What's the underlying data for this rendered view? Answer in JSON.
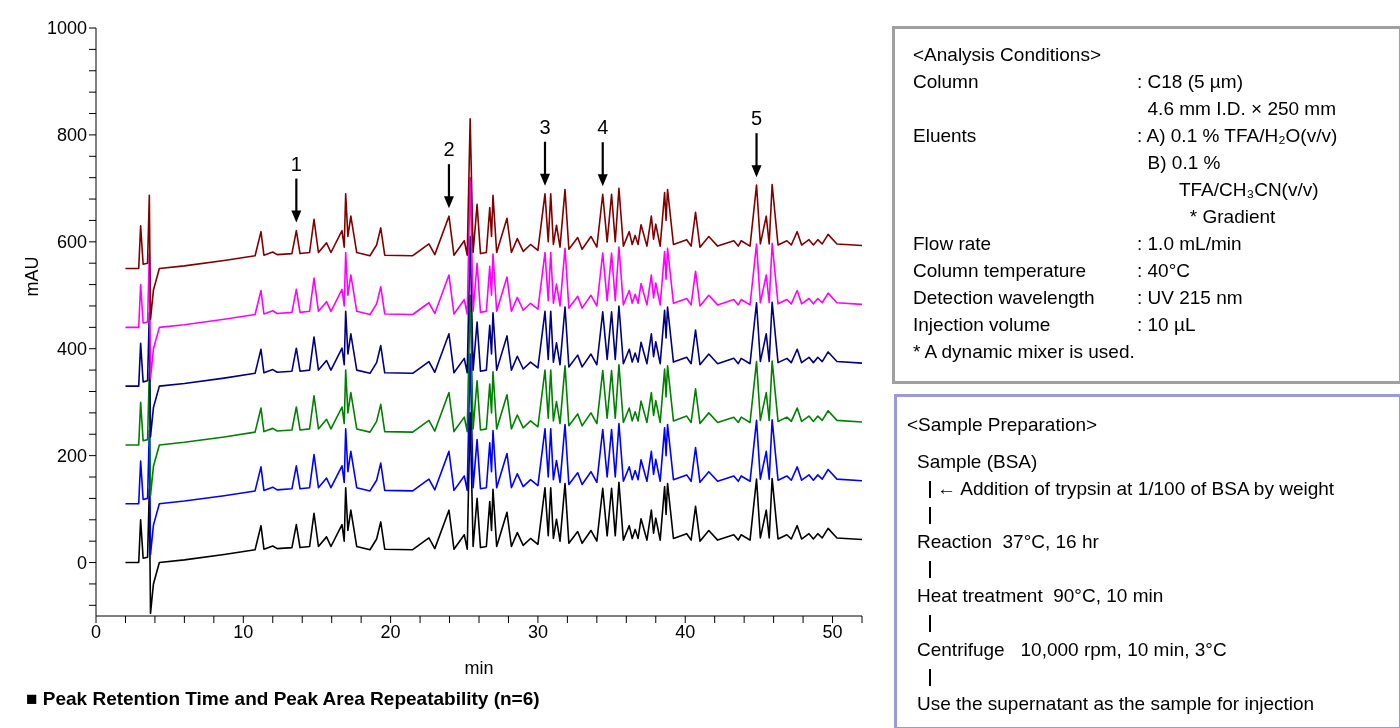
{
  "chart_data": [
    {
      "type": "line",
      "xlabel": "min",
      "ylabel": "mAU",
      "xlim": [
        0,
        52
      ],
      "ylim": [
        -100,
        1000
      ],
      "xticks": [
        0,
        {
          "value": 2,
          "label": null
        },
        {
          "value": 4,
          "label": null
        },
        {
          "value": 6,
          "label": null
        },
        {
          "value": 8,
          "label": null
        },
        10,
        {
          "value": 12,
          "label": null
        },
        {
          "value": 14,
          "label": null
        },
        {
          "value": 16,
          "label": null
        },
        {
          "value": 18,
          "label": null
        },
        20,
        {
          "value": 22,
          "label": null
        },
        {
          "value": 24,
          "label": null
        },
        {
          "value": 26,
          "label": null
        },
        {
          "value": 28,
          "label": null
        },
        30,
        {
          "value": 32,
          "label": null
        },
        {
          "value": 34,
          "label": null
        },
        {
          "value": 36,
          "label": null
        },
        {
          "value": 38,
          "label": null
        },
        40,
        {
          "value": 42,
          "label": null
        },
        {
          "value": 44,
          "label": null
        },
        {
          "value": 46,
          "label": null
        },
        {
          "value": 48,
          "label": null
        },
        50,
        {
          "value": 52,
          "label": null
        }
      ],
      "yticks": [
        {
          "value": -80,
          "label": null
        },
        {
          "value": -40,
          "label": null
        },
        0,
        {
          "value": 40,
          "label": null
        },
        {
          "value": 80,
          "label": null
        },
        {
          "value": 120,
          "label": null
        },
        {
          "value": 160,
          "label": null
        },
        200,
        {
          "value": 240,
          "label": null
        },
        {
          "value": 280,
          "label": null
        },
        {
          "value": 320,
          "label": null
        },
        {
          "value": 360,
          "label": null
        },
        400,
        {
          "value": 440,
          "label": null
        },
        {
          "value": 480,
          "label": null
        },
        {
          "value": 520,
          "label": null
        },
        {
          "value": 560,
          "label": null
        },
        600,
        {
          "value": 640,
          "label": null
        },
        {
          "value": 680,
          "label": null
        },
        {
          "value": 720,
          "label": null
        },
        {
          "value": 760,
          "label": null
        },
        800,
        {
          "value": 840,
          "label": null
        },
        {
          "value": 880,
          "label": null
        },
        {
          "value": 920,
          "label": null
        },
        {
          "value": 960,
          "label": null
        },
        1000
      ],
      "x": [
        2.0,
        2.9,
        3.03,
        3.2,
        3.5,
        3.62,
        3.7,
        3.9,
        4.3,
        6.0,
        8.7,
        10.8,
        11.2,
        11.4,
        12.0,
        12.3,
        13.3,
        13.6,
        13.85,
        14.5,
        14.8,
        15.1,
        15.65,
        15.95,
        16.7,
        16.85,
        16.95,
        17.1,
        17.3,
        17.7,
        18.6,
        19.05,
        19.33,
        19.6,
        21.5,
        22.6,
        23.0,
        23.96,
        24.3,
        25.0,
        25.2,
        25.4,
        25.6,
        25.87,
        26.1,
        26.5,
        26.73,
        26.85,
        26.95,
        27.2,
        27.9,
        28.2,
        28.6,
        29.0,
        29.5,
        30.0,
        30.48,
        30.7,
        30.87,
        31.05,
        31.26,
        31.5,
        31.84,
        32.1,
        32.7,
        33.0,
        33.6,
        34.0,
        34.4,
        34.7,
        35.0,
        35.25,
        35.5,
        35.8,
        36.2,
        36.4,
        36.6,
        36.8,
        37.0,
        37.4,
        37.7,
        37.85,
        38.0,
        38.3,
        38.6,
        38.7,
        38.8,
        39.2,
        40.1,
        40.4,
        40.7,
        41.0,
        41.6,
        42.2,
        43.3,
        43.6,
        43.8,
        44.4,
        44.84,
        45.1,
        45.5,
        45.7,
        45.9,
        46.3,
        46.9,
        47.2,
        47.6,
        47.9,
        48.4,
        48.7,
        49.0,
        49.3,
        49.7,
        50.3,
        52.0
      ],
      "series": [
        {
          "color": "#000000",
          "values": [
            0,
            0,
            80,
            8,
            10,
            137,
            -95,
            -40,
            0,
            5,
            15,
            24,
            69,
            25,
            31,
            26,
            28,
            71,
            28,
            30,
            92,
            30,
            48,
            30,
            71,
            40,
            140,
            60,
            98,
            30,
            24,
            44,
            76,
            25,
            24,
            46,
            26,
            98,
            25,
            52,
            25,
            280,
            30,
            120,
            28,
            30,
            114,
            60,
            137,
            30,
            94,
            30,
            56,
            32,
            45,
            34,
            140,
            50,
            140,
            45,
            81,
            40,
            148,
            36,
            58,
            36,
            60,
            40,
            139,
            50,
            139,
            50,
            150,
            42,
            69,
            45,
            62,
            45,
            82,
            42,
            98,
            55,
            83,
            42,
            142,
            90,
            148,
            45,
            54,
            42,
            105,
            40,
            60,
            42,
            52,
            42,
            52,
            42,
            156,
            46,
            98,
            46,
            157,
            44,
            52,
            44,
            69,
            44,
            54,
            44,
            54,
            46,
            64,
            46,
            43
          ]
        },
        {
          "color": "#0000ff",
          "values": [
            110,
            110,
            190,
            118,
            120,
            247,
            15,
            70,
            110,
            115,
            125,
            134,
            179,
            135,
            141,
            136,
            138,
            181,
            138,
            140,
            202,
            140,
            158,
            140,
            181,
            150,
            250,
            170,
            208,
            140,
            134,
            154,
            186,
            135,
            134,
            156,
            136,
            208,
            135,
            162,
            135,
            390,
            140,
            230,
            138,
            140,
            224,
            170,
            247,
            140,
            204,
            140,
            166,
            142,
            155,
            144,
            250,
            160,
            250,
            155,
            191,
            150,
            258,
            146,
            168,
            146,
            170,
            150,
            249,
            160,
            249,
            160,
            260,
            152,
            179,
            155,
            172,
            155,
            192,
            152,
            208,
            165,
            193,
            152,
            252,
            200,
            258,
            155,
            164,
            152,
            215,
            150,
            170,
            152,
            162,
            152,
            162,
            152,
            266,
            156,
            208,
            156,
            267,
            154,
            162,
            154,
            179,
            154,
            164,
            154,
            164,
            156,
            174,
            156,
            153
          ]
        },
        {
          "color": "#008000",
          "values": [
            220,
            220,
            300,
            228,
            230,
            357,
            125,
            180,
            220,
            225,
            235,
            244,
            289,
            245,
            251,
            246,
            248,
            291,
            248,
            250,
            312,
            250,
            268,
            250,
            291,
            260,
            360,
            280,
            318,
            250,
            244,
            264,
            296,
            245,
            244,
            266,
            246,
            318,
            245,
            272,
            245,
            500,
            250,
            340,
            248,
            250,
            334,
            280,
            357,
            250,
            314,
            250,
            276,
            252,
            265,
            254,
            360,
            270,
            360,
            265,
            301,
            260,
            368,
            256,
            278,
            256,
            280,
            260,
            359,
            270,
            359,
            270,
            370,
            262,
            289,
            265,
            282,
            265,
            302,
            262,
            318,
            275,
            303,
            262,
            362,
            310,
            368,
            265,
            274,
            262,
            325,
            260,
            280,
            262,
            272,
            262,
            272,
            262,
            376,
            266,
            318,
            266,
            377,
            264,
            272,
            264,
            289,
            264,
            274,
            264,
            274,
            266,
            284,
            266,
            263
          ]
        },
        {
          "color": "#000080",
          "values": [
            330,
            330,
            410,
            338,
            340,
            467,
            235,
            290,
            330,
            335,
            345,
            354,
            399,
            355,
            361,
            356,
            358,
            401,
            358,
            360,
            422,
            360,
            378,
            360,
            401,
            370,
            470,
            390,
            428,
            360,
            354,
            374,
            406,
            355,
            354,
            376,
            356,
            428,
            355,
            382,
            355,
            610,
            360,
            450,
            358,
            360,
            444,
            390,
            467,
            360,
            424,
            360,
            386,
            362,
            375,
            364,
            470,
            380,
            470,
            375,
            411,
            370,
            478,
            366,
            388,
            366,
            390,
            370,
            469,
            380,
            469,
            380,
            480,
            372,
            399,
            375,
            392,
            375,
            412,
            372,
            428,
            385,
            413,
            372,
            472,
            420,
            478,
            375,
            384,
            372,
            435,
            370,
            390,
            372,
            382,
            372,
            382,
            372,
            486,
            376,
            428,
            376,
            487,
            374,
            382,
            374,
            399,
            374,
            384,
            374,
            384,
            376,
            394,
            376,
            373
          ]
        },
        {
          "color": "#ff00ff",
          "values": [
            440,
            440,
            520,
            448,
            450,
            577,
            345,
            400,
            440,
            445,
            455,
            464,
            509,
            465,
            471,
            466,
            468,
            511,
            468,
            470,
            532,
            470,
            488,
            470,
            511,
            480,
            580,
            500,
            538,
            470,
            464,
            484,
            516,
            465,
            464,
            486,
            466,
            538,
            465,
            492,
            465,
            720,
            470,
            560,
            468,
            470,
            554,
            500,
            577,
            470,
            534,
            470,
            496,
            472,
            485,
            474,
            580,
            490,
            580,
            485,
            521,
            480,
            588,
            476,
            498,
            476,
            500,
            480,
            579,
            490,
            579,
            490,
            590,
            482,
            509,
            485,
            502,
            485,
            522,
            482,
            538,
            495,
            523,
            482,
            582,
            530,
            588,
            485,
            494,
            482,
            545,
            480,
            500,
            482,
            492,
            482,
            492,
            482,
            596,
            486,
            538,
            486,
            597,
            484,
            492,
            484,
            509,
            484,
            494,
            484,
            494,
            486,
            504,
            486,
            483
          ]
        },
        {
          "color": "#800000",
          "values": [
            550,
            550,
            630,
            558,
            560,
            687,
            455,
            510,
            550,
            555,
            565,
            574,
            619,
            575,
            581,
            576,
            578,
            621,
            578,
            580,
            642,
            580,
            598,
            580,
            621,
            590,
            690,
            610,
            648,
            580,
            574,
            594,
            626,
            575,
            574,
            596,
            576,
            648,
            575,
            602,
            575,
            830,
            580,
            670,
            578,
            580,
            664,
            610,
            687,
            580,
            644,
            580,
            606,
            582,
            595,
            584,
            690,
            600,
            690,
            595,
            631,
            590,
            698,
            586,
            608,
            586,
            610,
            590,
            689,
            600,
            689,
            600,
            700,
            592,
            619,
            595,
            612,
            595,
            632,
            592,
            648,
            605,
            633,
            592,
            692,
            640,
            698,
            595,
            604,
            592,
            655,
            590,
            610,
            592,
            602,
            592,
            602,
            592,
            706,
            596,
            648,
            596,
            707,
            594,
            602,
            594,
            619,
            594,
            604,
            594,
            604,
            596,
            614,
            596,
            593
          ]
        }
      ],
      "annotations": [
        {
          "text": "1",
          "x": 13.6,
          "y": 621
        },
        {
          "text": "2",
          "x": 23.96,
          "y": 648
        },
        {
          "text": "3",
          "x": 30.48,
          "y": 690
        },
        {
          "text": "4",
          "x": 34.4,
          "y": 689
        },
        {
          "text": "5",
          "x": 44.84,
          "y": 706
        },
        "■ Peak Retention Time and Peak Area Repeatability (n=6)"
      ]
    },
    {
      "type": "other",
      "title": "<Analysis Conditions>",
      "annotations": [
        "Column\t: C18 (5 µm)",
        "\t  4.6 mm I.D. × 250 mm",
        "Eluents\t: A) 0.1 % TFA/H₂O(v/v)",
        "\t  B) 0.1 %",
        "\t        TFA/CH₃CN(v/v)",
        "\t          * Gradient",
        "Flow rate\t: 1.0 mL/min",
        "Column temperature\t: 40°C",
        "Detection wavelength\t: UV 215 nm",
        "Injection volume\t: 10 µL",
        "* A dynamic mixer is used."
      ]
    },
    {
      "type": "other",
      "title": "<Sample Preparation>",
      "annotations": [
        "Sample (BSA)",
        "← Addition of trypsin at 1/100 of BSA by weight",
        "Reaction  37°C, 16 hr",
        "Heat treatment  90°C, 10 min",
        "Centrifuge   10,000 rpm, 10 min, 3°C",
        "Use the supernatant as the sample for injection"
      ]
    }
  ]
}
